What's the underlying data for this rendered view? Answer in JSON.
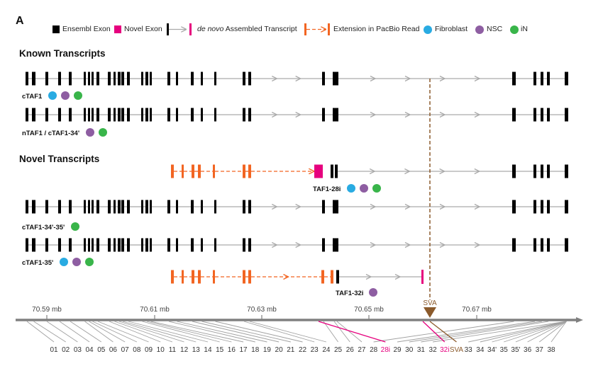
{
  "panel_label": "A",
  "legend": {
    "ensembl_exon": "Ensembl Exon",
    "novel_exon": "Novel Exon",
    "denovo_prefix": "de novo",
    "denovo_suffix": " Assembled Transcript",
    "pacbio_extension": "Extension in PacBio Read",
    "fibroblast": "Fibroblast",
    "nsc": "NSC",
    "in": "iN"
  },
  "sections": {
    "known": "Known Transcripts",
    "novel": "Novel Transcripts"
  },
  "colors": {
    "exon": "#000000",
    "novel_exon": "#e6007e",
    "intron": "#aaaaaa",
    "extension": "#f26522",
    "fibroblast": "#29abe2",
    "nsc": "#8e5ea2",
    "in": "#39b54a",
    "sva": "#8b5a2b",
    "axis": "#808080"
  },
  "transcripts": [
    {
      "label": "cTAF1",
      "cells": [
        "fibroblast",
        "nsc",
        "in"
      ]
    },
    {
      "label": "nTAF1 / cTAF1-34'",
      "cells": [
        "nsc",
        "in"
      ]
    },
    {
      "label": "TAF1-28i",
      "cells": [
        "fibroblast",
        "nsc",
        "in"
      ]
    },
    {
      "label": "cTAF1-34'-35'",
      "cells": [
        "in"
      ]
    },
    {
      "label": "cTAF1-35'",
      "cells": [
        "fibroblast",
        "nsc",
        "in"
      ]
    },
    {
      "label": "TAF1-32i",
      "cells": [
        "nsc"
      ]
    }
  ],
  "sva_label": "SVA",
  "axis_ticks": [
    "70.59 mb",
    "70.61 mb",
    "70.63 mb",
    "70.65 mb",
    "70.67 mb"
  ],
  "exon_numbers": [
    "01",
    "02",
    "03",
    "04",
    "05",
    "06",
    "07",
    "08",
    "09",
    "10",
    "11",
    "12",
    "13",
    "14",
    "15",
    "16",
    "17",
    "18",
    "19",
    "20",
    "21",
    "22",
    "23",
    "24",
    "25",
    "26",
    "27",
    "28",
    "28i",
    "29",
    "30",
    "31",
    "32",
    "32i",
    "SVA",
    "33",
    "34",
    "34'",
    "35",
    "35'",
    "36",
    "37",
    "38"
  ]
}
